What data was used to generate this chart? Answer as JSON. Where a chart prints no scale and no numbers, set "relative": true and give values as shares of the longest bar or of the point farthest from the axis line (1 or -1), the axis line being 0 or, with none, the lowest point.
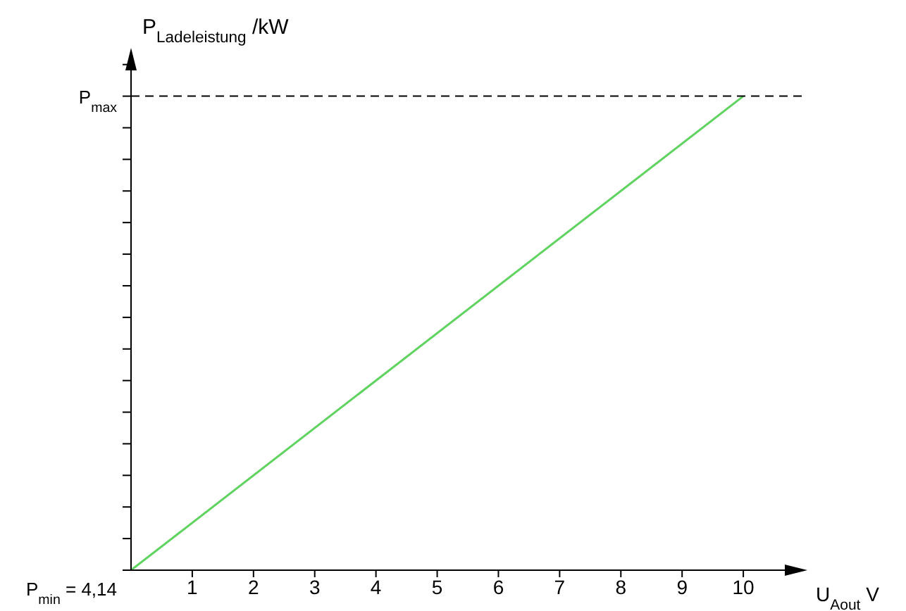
{
  "chart_data": {
    "type": "line",
    "relative": true,
    "xlabel": "U$_{Aout}$ V",
    "ylabel": "P$_{Ladeleistung}$     /kW",
    "x": [
      0,
      10
    ],
    "series": [
      {
        "color": "#5fd35f",
        "values": [
          0,
          1
        ]
      }
    ],
    "xlim": [
      0,
      11
    ],
    "xticks": [
      1,
      2,
      3,
      4,
      5,
      6,
      7,
      8,
      9,
      10
    ],
    "ref_lines": [
      {
        "axis": "y",
        "value": 1,
        "label": "P$_{max}$",
        "color": "#000000",
        "line_style": "dashed"
      }
    ],
    "annotations": [
      {
        "text": "P$_{min}$ = 4,14",
        "x": 0,
        "y": 0
      }
    ],
    "marker": "none",
    "line_style": "solid"
  }
}
